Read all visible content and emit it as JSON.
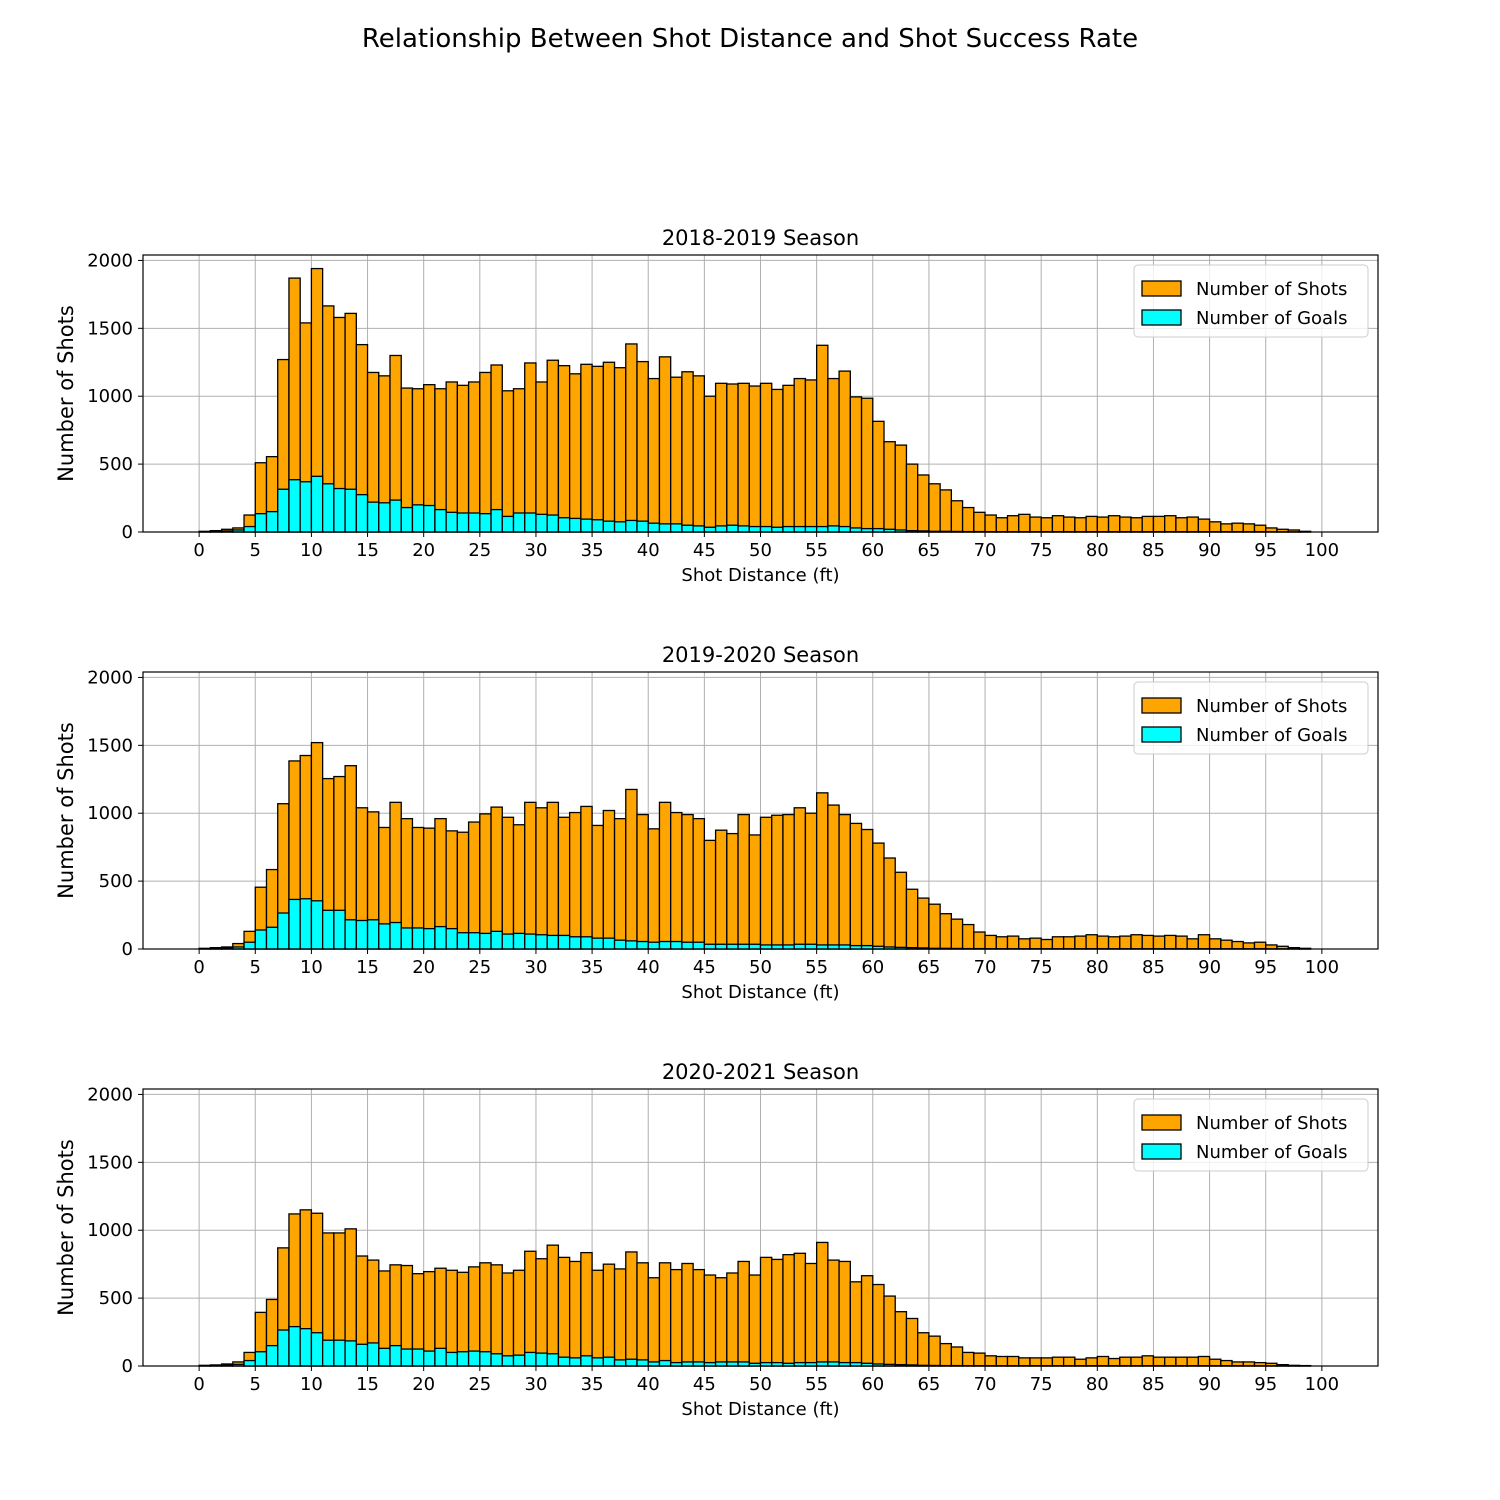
{
  "figure": {
    "title": "Relationship Between Shot Distance and Shot Success Rate"
  },
  "colors": {
    "shots": "#ffa500",
    "goals": "#00ffff",
    "edge": "#000000",
    "grid": "#b0b0b0"
  },
  "chart_data": [
    {
      "type": "bar",
      "title": "2018-2019 Season",
      "xlabel": "Shot Distance (ft)",
      "ylabel": "Number of Shots",
      "xlim": [
        -5,
        105
      ],
      "ylim": [
        0,
        2040
      ],
      "xticks": [
        0,
        5,
        10,
        15,
        20,
        25,
        30,
        35,
        40,
        45,
        50,
        55,
        60,
        65,
        70,
        75,
        80,
        85,
        90,
        95,
        100
      ],
      "yticks": [
        0,
        500,
        1000,
        1500,
        2000
      ],
      "grid": true,
      "legend_position": "top-right",
      "bin_start": 0,
      "bin_width": 1,
      "series": [
        {
          "name": "Number of Shots",
          "color": "#ffa500",
          "values": [
            5,
            10,
            20,
            30,
            125,
            510,
            555,
            1270,
            1870,
            1540,
            1940,
            1665,
            1580,
            1610,
            1380,
            1175,
            1150,
            1300,
            1060,
            1055,
            1085,
            1055,
            1105,
            1080,
            1105,
            1175,
            1230,
            1040,
            1055,
            1245,
            1105,
            1265,
            1225,
            1165,
            1235,
            1220,
            1250,
            1210,
            1385,
            1255,
            1130,
            1290,
            1140,
            1180,
            1150,
            1000,
            1095,
            1090,
            1095,
            1075,
            1095,
            1050,
            1080,
            1130,
            1120,
            1375,
            1130,
            1185,
            995,
            985,
            815,
            665,
            640,
            500,
            420,
            355,
            310,
            230,
            180,
            145,
            125,
            105,
            120,
            130,
            110,
            105,
            120,
            110,
            105,
            115,
            110,
            120,
            110,
            105,
            115,
            115,
            120,
            105,
            110,
            95,
            75,
            60,
            65,
            60,
            50,
            30,
            20,
            15,
            5
          ]
        },
        {
          "name": "Number of Goals",
          "color": "#00ffff",
          "values": [
            2,
            3,
            8,
            15,
            40,
            135,
            150,
            315,
            385,
            370,
            410,
            355,
            320,
            315,
            275,
            220,
            215,
            235,
            180,
            200,
            195,
            165,
            145,
            140,
            140,
            135,
            165,
            115,
            140,
            140,
            130,
            125,
            105,
            100,
            95,
            90,
            80,
            75,
            85,
            80,
            65,
            60,
            60,
            50,
            45,
            35,
            45,
            50,
            45,
            40,
            40,
            35,
            40,
            40,
            40,
            40,
            45,
            40,
            30,
            25,
            25,
            20,
            15,
            10,
            8,
            5,
            5,
            4,
            3,
            3,
            2,
            2,
            2,
            2,
            2,
            2,
            2,
            2,
            2,
            2,
            2,
            2,
            2,
            2,
            2,
            2,
            2,
            2,
            2,
            2,
            2,
            2,
            2,
            2,
            2,
            1,
            1,
            1,
            1
          ]
        }
      ]
    },
    {
      "type": "bar",
      "title": "2019-2020 Season",
      "xlabel": "Shot Distance (ft)",
      "ylabel": "Number of Shots",
      "xlim": [
        -5,
        105
      ],
      "ylim": [
        0,
        2040
      ],
      "xticks": [
        0,
        5,
        10,
        15,
        20,
        25,
        30,
        35,
        40,
        45,
        50,
        55,
        60,
        65,
        70,
        75,
        80,
        85,
        90,
        95,
        100
      ],
      "yticks": [
        0,
        500,
        1000,
        1500,
        2000
      ],
      "grid": true,
      "legend_position": "top-right",
      "bin_start": 0,
      "bin_width": 1,
      "series": [
        {
          "name": "Number of Shots",
          "color": "#ffa500",
          "values": [
            5,
            10,
            15,
            40,
            130,
            455,
            585,
            1070,
            1385,
            1425,
            1520,
            1255,
            1270,
            1350,
            1040,
            1010,
            895,
            1080,
            960,
            895,
            890,
            960,
            870,
            860,
            935,
            995,
            1045,
            970,
            915,
            1080,
            1040,
            1080,
            970,
            1005,
            1050,
            910,
            1020,
            960,
            1175,
            990,
            885,
            1080,
            1005,
            990,
            960,
            800,
            875,
            850,
            990,
            840,
            970,
            985,
            990,
            1040,
            1000,
            1150,
            1060,
            990,
            925,
            880,
            780,
            670,
            565,
            440,
            375,
            330,
            260,
            220,
            180,
            125,
            100,
            90,
            95,
            75,
            80,
            70,
            90,
            90,
            95,
            105,
            95,
            90,
            95,
            105,
            100,
            95,
            100,
            95,
            75,
            105,
            75,
            65,
            55,
            45,
            50,
            30,
            20,
            10,
            5
          ]
        },
        {
          "name": "Number of Goals",
          "color": "#00ffff",
          "values": [
            2,
            3,
            8,
            15,
            50,
            140,
            160,
            265,
            365,
            370,
            355,
            285,
            285,
            215,
            210,
            215,
            185,
            195,
            155,
            155,
            150,
            165,
            150,
            120,
            120,
            115,
            130,
            110,
            115,
            110,
            105,
            100,
            100,
            90,
            90,
            80,
            80,
            65,
            60,
            55,
            50,
            55,
            55,
            50,
            50,
            35,
            35,
            35,
            35,
            35,
            30,
            30,
            30,
            35,
            35,
            30,
            30,
            30,
            25,
            25,
            20,
            15,
            12,
            10,
            8,
            5,
            5,
            4,
            3,
            3,
            2,
            2,
            2,
            2,
            2,
            2,
            2,
            2,
            2,
            2,
            2,
            2,
            2,
            2,
            2,
            2,
            2,
            2,
            2,
            2,
            2,
            2,
            2,
            2,
            2,
            1,
            1,
            1,
            1
          ]
        }
      ]
    },
    {
      "type": "bar",
      "title": "2020-2021 Season",
      "xlabel": "Shot Distance (ft)",
      "ylabel": "Number of Shots",
      "xlim": [
        -5,
        105
      ],
      "ylim": [
        0,
        2040
      ],
      "xticks": [
        0,
        5,
        10,
        15,
        20,
        25,
        30,
        35,
        40,
        45,
        50,
        55,
        60,
        65,
        70,
        75,
        80,
        85,
        90,
        95,
        100
      ],
      "yticks": [
        0,
        500,
        1000,
        1500,
        2000
      ],
      "grid": true,
      "legend_position": "top-right",
      "bin_start": 0,
      "bin_width": 1,
      "series": [
        {
          "name": "Number of Shots",
          "color": "#ffa500",
          "values": [
            5,
            8,
            15,
            30,
            100,
            395,
            490,
            870,
            1120,
            1150,
            1125,
            980,
            980,
            1010,
            810,
            780,
            700,
            745,
            740,
            680,
            695,
            720,
            705,
            690,
            730,
            760,
            745,
            685,
            705,
            845,
            790,
            890,
            800,
            770,
            835,
            705,
            750,
            715,
            840,
            760,
            650,
            760,
            710,
            755,
            710,
            670,
            650,
            685,
            770,
            670,
            800,
            785,
            820,
            830,
            755,
            910,
            780,
            770,
            620,
            665,
            600,
            515,
            400,
            350,
            245,
            220,
            165,
            140,
            100,
            95,
            75,
            70,
            70,
            60,
            60,
            60,
            65,
            65,
            50,
            60,
            70,
            55,
            65,
            65,
            75,
            65,
            65,
            65,
            65,
            70,
            50,
            40,
            30,
            30,
            25,
            20,
            10,
            5,
            3
          ]
        },
        {
          "name": "Number of Goals",
          "color": "#00ffff",
          "values": [
            2,
            3,
            6,
            12,
            40,
            105,
            150,
            265,
            290,
            275,
            245,
            190,
            190,
            185,
            160,
            170,
            130,
            150,
            125,
            125,
            110,
            130,
            100,
            105,
            110,
            105,
            90,
            75,
            80,
            100,
            95,
            90,
            65,
            60,
            75,
            60,
            65,
            45,
            50,
            45,
            30,
            40,
            25,
            30,
            30,
            25,
            30,
            30,
            30,
            20,
            25,
            25,
            20,
            25,
            25,
            30,
            30,
            25,
            25,
            20,
            15,
            12,
            10,
            8,
            5,
            4,
            3,
            3,
            2,
            2,
            2,
            2,
            2,
            2,
            2,
            2,
            2,
            2,
            2,
            2,
            2,
            2,
            2,
            2,
            2,
            2,
            2,
            2,
            2,
            2,
            2,
            2,
            2,
            1,
            1,
            1,
            1,
            1,
            1
          ]
        }
      ]
    }
  ]
}
